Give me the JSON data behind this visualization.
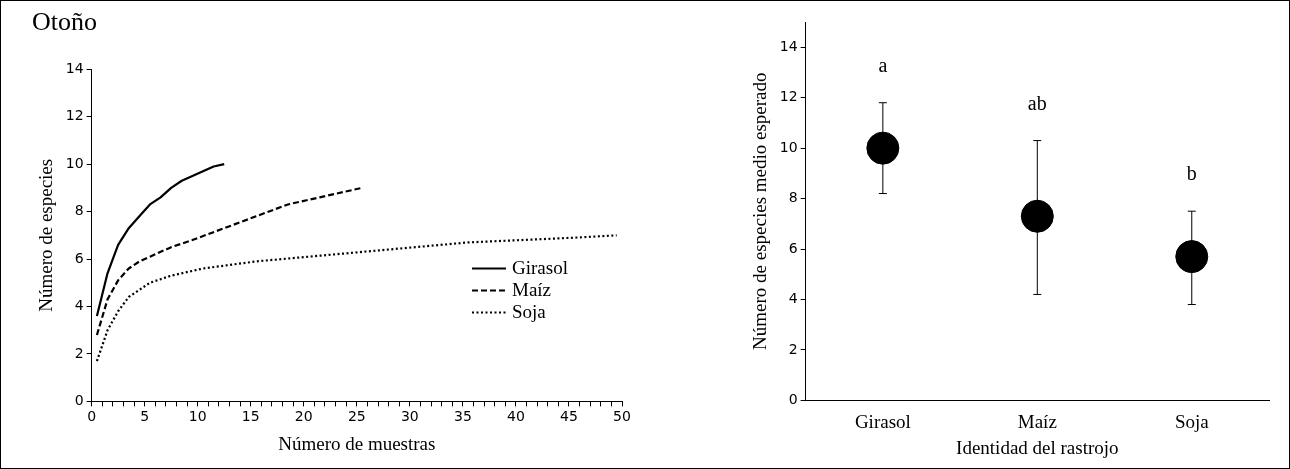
{
  "chart_data": [
    {
      "type": "line",
      "title": "Otoño",
      "xlabel": "Número de muestras",
      "ylabel": "Número de especies",
      "xlim": [
        0,
        50
      ],
      "xticks": [
        0,
        {
          "value": 1,
          "label": null
        },
        {
          "value": 2,
          "label": null
        },
        {
          "value": 3,
          "label": null
        },
        {
          "value": 4,
          "label": null
        },
        5,
        {
          "value": 6,
          "label": null
        },
        {
          "value": 7,
          "label": null
        },
        {
          "value": 8,
          "label": null
        },
        {
          "value": 9,
          "label": null
        },
        10,
        {
          "value": 11,
          "label": null
        },
        {
          "value": 12,
          "label": null
        },
        {
          "value": 13,
          "label": null
        },
        {
          "value": 14,
          "label": null
        },
        15,
        {
          "value": 16,
          "label": null
        },
        {
          "value": 17,
          "label": null
        },
        {
          "value": 18,
          "label": null
        },
        {
          "value": 19,
          "label": null
        },
        20,
        {
          "value": 21,
          "label": null
        },
        {
          "value": 22,
          "label": null
        },
        {
          "value": 23,
          "label": null
        },
        {
          "value": 24,
          "label": null
        },
        25,
        {
          "value": 26,
          "label": null
        },
        {
          "value": 27,
          "label": null
        },
        {
          "value": 28,
          "label": null
        },
        {
          "value": 29,
          "label": null
        },
        30,
        {
          "value": 31,
          "label": null
        },
        {
          "value": 32,
          "label": null
        },
        {
          "value": 33,
          "label": null
        },
        {
          "value": 34,
          "label": null
        },
        35,
        {
          "value": 36,
          "label": null
        },
        {
          "value": 37,
          "label": null
        },
        {
          "value": 38,
          "label": null
        },
        {
          "value": 39,
          "label": null
        },
        40,
        {
          "value": 41,
          "label": null
        },
        {
          "value": 42,
          "label": null
        },
        {
          "value": 43,
          "label": null
        },
        {
          "value": 44,
          "label": null
        },
        45,
        {
          "value": 46,
          "label": null
        },
        {
          "value": 47,
          "label": null
        },
        {
          "value": 48,
          "label": null
        },
        {
          "value": 49,
          "label": null
        },
        50
      ],
      "ylim": [
        0,
        14
      ],
      "yticks": [
        0,
        2,
        4,
        6,
        8,
        10,
        12,
        14
      ],
      "legend": "right",
      "marker": "none",
      "series": [
        {
          "name": "Girasol",
          "color": "#000000",
          "line_style": "solid",
          "x": [
            0.5,
            1.5,
            2.5,
            3.5,
            4.5,
            5.5,
            6.5,
            7.5,
            8.5,
            9.5,
            10.5,
            11.5,
            12.5
          ],
          "values": [
            3.6,
            5.4,
            6.6,
            7.3,
            7.8,
            8.3,
            8.6,
            9.0,
            9.3,
            9.5,
            9.7,
            9.9,
            10.0
          ]
        },
        {
          "name": "Maíz",
          "color": "#000000",
          "line_style": "dashed",
          "x": [
            0.5,
            1.5,
            2.5,
            3.5,
            4.5,
            5.5,
            7.5,
            9.5,
            12.5,
            15.5,
            18.5,
            21.5,
            25.5
          ],
          "values": [
            2.8,
            4.3,
            5.1,
            5.6,
            5.9,
            6.1,
            6.5,
            6.8,
            7.3,
            7.8,
            8.3,
            8.6,
            9.0
          ]
        },
        {
          "name": "Soja",
          "color": "#000000",
          "line_style": "dotted",
          "x": [
            0.5,
            1.5,
            2.5,
            3.5,
            5.5,
            7.5,
            10.5,
            15.5,
            20.5,
            25.5,
            30.5,
            35.5,
            40.5,
            45.5,
            49.5
          ],
          "values": [
            1.7,
            3.0,
            3.8,
            4.4,
            5.0,
            5.3,
            5.6,
            5.9,
            6.1,
            6.3,
            6.5,
            6.7,
            6.8,
            6.9,
            7.0
          ]
        }
      ]
    },
    {
      "type": "scatter",
      "xlabel": "Identidad del rastrojo",
      "ylabel": "Número de especies medio esperado",
      "categories": [
        "Girasol",
        "Maíz",
        "Soja"
      ],
      "values": [
        10.0,
        7.3,
        5.7
      ],
      "color": "#000000",
      "errors": [
        [
          8.2,
          11.8
        ],
        [
          4.2,
          10.3
        ],
        [
          3.8,
          7.5
        ]
      ],
      "ylim": [
        0,
        15
      ],
      "yticks": [
        0,
        2,
        4,
        6,
        8,
        10,
        12,
        14
      ],
      "marker": "circle",
      "annotations": [
        "a",
        "ab",
        "b"
      ]
    }
  ]
}
